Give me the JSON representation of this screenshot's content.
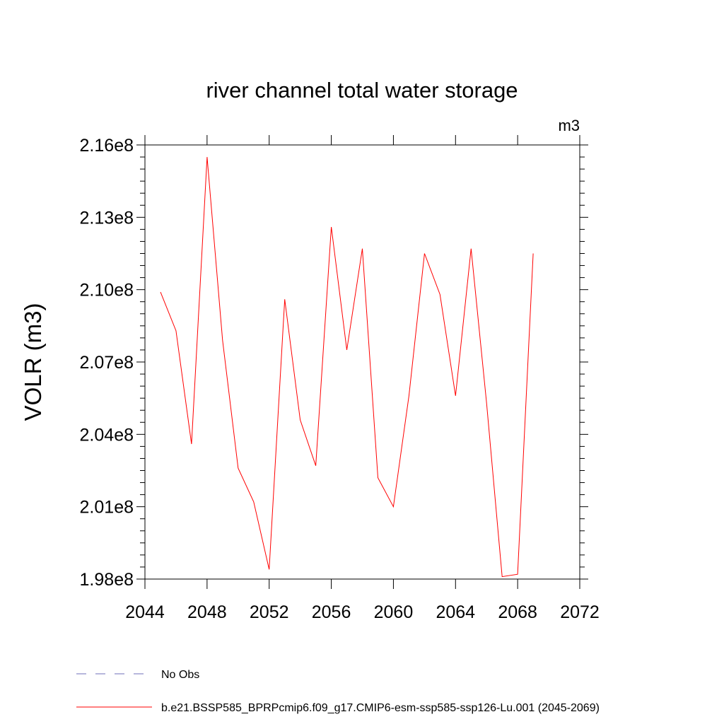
{
  "chart_data": {
    "type": "line",
    "title": "river channel total water storage",
    "units_label": "m3",
    "ylabel": "VOLR  (m3)",
    "xlabel": "",
    "xlim": [
      2044,
      2072
    ],
    "ylim": [
      198000000,
      216000000
    ],
    "x_ticks": [
      2044,
      2048,
      2052,
      2056,
      2060,
      2064,
      2068,
      2072
    ],
    "x_tick_labels": [
      "2044",
      "2048",
      "2052",
      "2056",
      "2060",
      "2064",
      "2068",
      "2072"
    ],
    "y_ticks": [
      198000000,
      201000000,
      204000000,
      207000000,
      210000000,
      213000000,
      216000000
    ],
    "y_tick_labels": [
      "1.98e8",
      "2.01e8",
      "2.04e8",
      "2.07e8",
      "2.10e8",
      "2.13e8",
      "2.16e8"
    ],
    "grid": false,
    "legend_placement": "bottom-left",
    "series": [
      {
        "name": "b.e21.BSSP585_BPRPcmip6.f09_g17.CMIP6-esm-ssp585-ssp126-Lu.001 (2045-2069)",
        "color": "#ff0000",
        "style": "solid",
        "x": [
          2045,
          2046,
          2047,
          2048,
          2049,
          2050,
          2051,
          2052,
          2053,
          2054,
          2055,
          2056,
          2057,
          2058,
          2059,
          2060,
          2061,
          2062,
          2063,
          2064,
          2065,
          2066,
          2067,
          2068,
          2069
        ],
        "values": [
          209900000,
          208300000,
          203600000,
          215500000,
          207900000,
          202600000,
          201200000,
          198400000,
          209600000,
          204600000,
          202700000,
          212600000,
          207500000,
          211700000,
          202200000,
          201000000,
          205600000,
          211500000,
          209800000,
          205600000,
          211700000,
          205300000,
          198100000,
          198200000,
          211500000
        ]
      }
    ],
    "legend": [
      {
        "label": "No Obs",
        "color": "#6f6fb8",
        "style": "dashed"
      },
      {
        "label": "b.e21.BSSP585_BPRPcmip6.f09_g17.CMIP6-esm-ssp585-ssp126-Lu.001 (2045-2069)",
        "color": "#ff0000",
        "style": "solid"
      }
    ]
  }
}
